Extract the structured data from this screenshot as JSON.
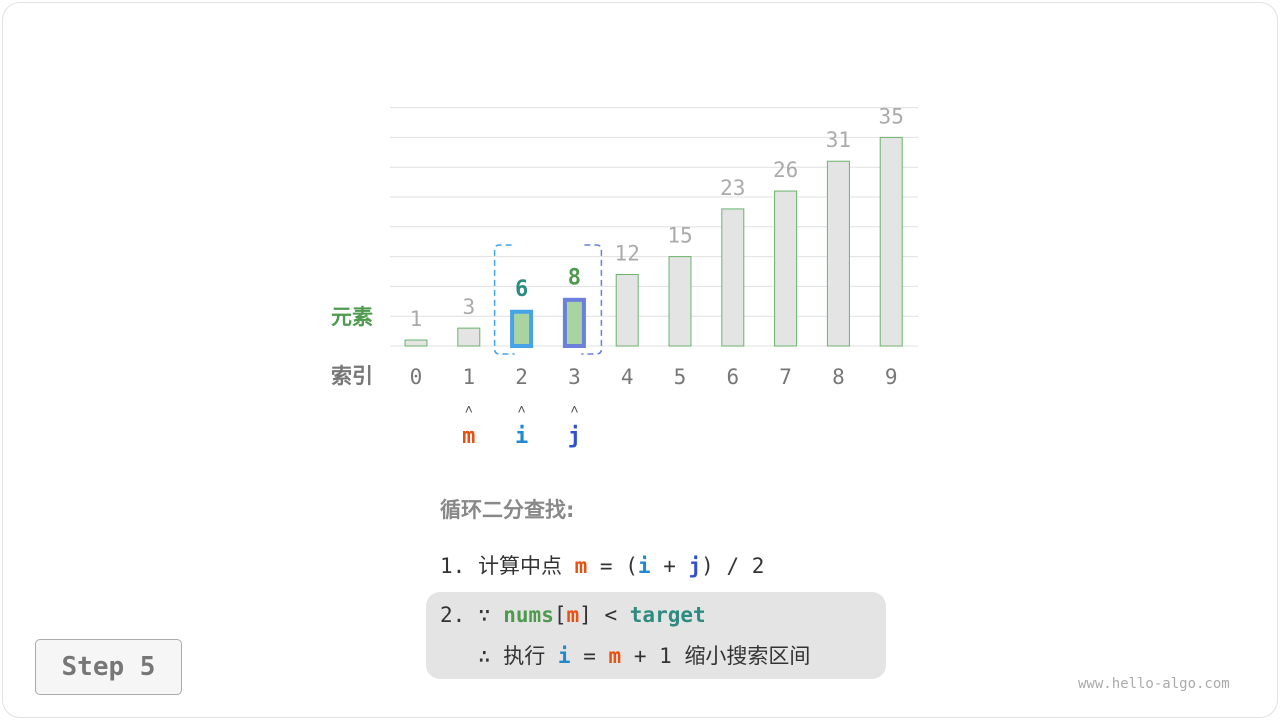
{
  "diagram": {
    "row_label_elements": "元素",
    "row_label_index": "索引",
    "indices": [
      "0",
      "1",
      "2",
      "3",
      "4",
      "5",
      "6",
      "7",
      "8",
      "9"
    ],
    "values": [
      1,
      3,
      6,
      8,
      12,
      15,
      23,
      26,
      31,
      35
    ],
    "highlight": {
      "i": 2,
      "j": 3,
      "m": 1
    },
    "pointers": [
      {
        "label": "m",
        "index": 1
      },
      {
        "label": "i",
        "index": 2
      },
      {
        "label": "j",
        "index": 3
      }
    ],
    "pointer_arrow": "˄",
    "colors": {
      "bar_fill": "#e4e4e4",
      "bar_border": "#6bb36b",
      "active_fill": "#a9d3a0",
      "i_color": "#1e88d0",
      "i_border": "#47a3e8",
      "j_color": "#3050d0",
      "j_border": "#6b80dc",
      "m_color": "#e8510f",
      "label_gray": "#aaaaaa",
      "grid": "#e0e0e0",
      "green": "#4e9a4e",
      "teal": "#2e8b80"
    }
  },
  "text": {
    "title": "循环二分查找:",
    "l1_num": "1.",
    "l1_text": "计算中点",
    "l1_m": "m",
    "l1_eq": "=",
    "l1_open": "(",
    "l1_i": "i",
    "l1_plus": "+",
    "l1_j": "j",
    "l1_rest": ") / 2",
    "l2_num": "2.",
    "l2_because": "∵",
    "l2_nums": "nums",
    "l2_ob": "[",
    "l2_m": "m",
    "l2_cb": "]",
    "l2_lt": "<",
    "l2_target": "target",
    "l3_therefore": "∴",
    "l3_exec": "执行",
    "l3_i": "i",
    "l3_eq": "=",
    "l3_m": "m",
    "l3_rest": "+ 1",
    "l3_text": "缩小搜索区间"
  },
  "step_label": "Step 5",
  "watermark": "www.hello-algo.com"
}
